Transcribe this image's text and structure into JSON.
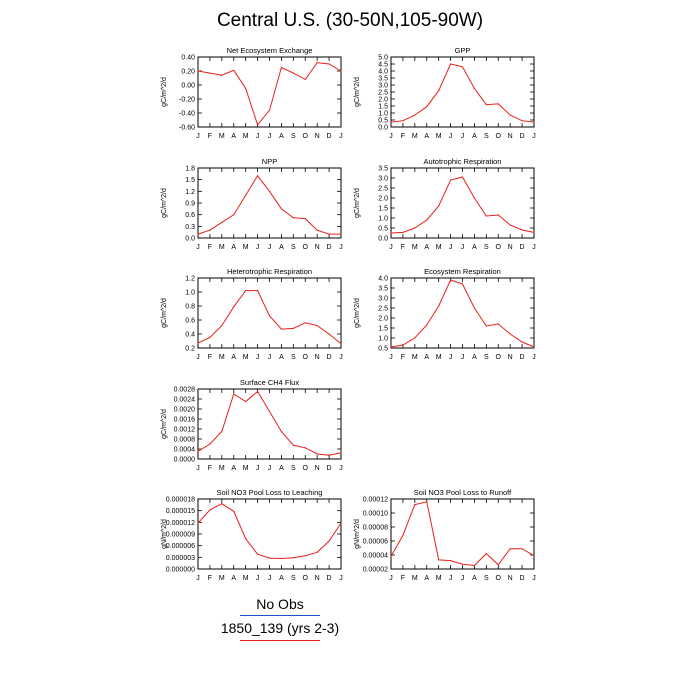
{
  "title": "Central U.S. (30-50N,105-90W)",
  "colors": {
    "model": "#e8201a",
    "obs": "#2050c8"
  },
  "legend": {
    "obs_label": "No Obs",
    "model_label": "1850_139 (yrs 2-3)"
  },
  "chart_data": [
    {
      "type": "line",
      "title": "Net Ecosystem Exchange",
      "ylabel": "gC/m^2/d",
      "ylim": [
        -0.6,
        0.4
      ],
      "yticks": [
        "0.40",
        "0.20",
        "0.00",
        "-0.20",
        "-0.40",
        "-0.60"
      ],
      "ytick_values": [
        0.4,
        0.2,
        0.0,
        -0.2,
        -0.4,
        -0.6
      ],
      "x": [
        "J",
        "F",
        "M",
        "A",
        "M",
        "J",
        "J",
        "A",
        "S",
        "O",
        "N",
        "D",
        "J"
      ],
      "values": [
        0.2,
        0.17,
        0.14,
        0.21,
        -0.05,
        -0.57,
        -0.36,
        0.25,
        0.17,
        0.08,
        0.32,
        0.3,
        0.2
      ]
    },
    {
      "type": "line",
      "title": "GPP",
      "ylabel": "gC/m^2/d",
      "ylim": [
        0,
        5
      ],
      "yticks": [
        "5.0",
        "4.5",
        "4.0",
        "3.5",
        "3.0",
        "2.5",
        "2.0",
        "1.5",
        "1.0",
        "0.5",
        "0.0"
      ],
      "ytick_values": [
        5.0,
        4.5,
        4.0,
        3.5,
        3.0,
        2.5,
        2.0,
        1.5,
        1.0,
        0.5,
        0.0
      ],
      "x": [
        "J",
        "F",
        "M",
        "A",
        "M",
        "J",
        "J",
        "A",
        "S",
        "O",
        "N",
        "D",
        "J"
      ],
      "values": [
        0.35,
        0.45,
        0.85,
        1.45,
        2.6,
        4.5,
        4.3,
        2.75,
        1.6,
        1.65,
        0.85,
        0.45,
        0.35
      ]
    },
    {
      "type": "line",
      "title": "NPP",
      "ylabel": "gC/m^2/d",
      "ylim": [
        0,
        1.8
      ],
      "yticks": [
        "1.8",
        "1.5",
        "1.2",
        "0.9",
        "0.6",
        "0.3",
        "0.0"
      ],
      "ytick_values": [
        1.8,
        1.5,
        1.2,
        0.9,
        0.6,
        0.3,
        0.0
      ],
      "x": [
        "J",
        "F",
        "M",
        "A",
        "M",
        "J",
        "J",
        "A",
        "S",
        "O",
        "N",
        "D",
        "J"
      ],
      "values": [
        0.1,
        0.2,
        0.4,
        0.6,
        1.1,
        1.6,
        1.2,
        0.75,
        0.52,
        0.5,
        0.2,
        0.1,
        0.1
      ]
    },
    {
      "type": "line",
      "title": "Autotrophic Respiration",
      "ylabel": "gC/m^2/d",
      "ylim": [
        0,
        3.5
      ],
      "yticks": [
        "3.5",
        "3.0",
        "2.5",
        "2.0",
        "1.5",
        "1.0",
        "0.5",
        "0.0"
      ],
      "ytick_values": [
        3.5,
        3.0,
        2.5,
        2.0,
        1.5,
        1.0,
        0.5,
        0.0
      ],
      "x": [
        "J",
        "F",
        "M",
        "A",
        "M",
        "J",
        "J",
        "A",
        "S",
        "O",
        "N",
        "D",
        "J"
      ],
      "values": [
        0.25,
        0.28,
        0.5,
        0.9,
        1.6,
        2.9,
        3.05,
        2.0,
        1.1,
        1.15,
        0.65,
        0.4,
        0.28
      ]
    },
    {
      "type": "line",
      "title": "Heterotrophic Respiration",
      "ylabel": "gC/m^2/d",
      "ylim": [
        0.2,
        1.2
      ],
      "yticks": [
        "1.2",
        "1.0",
        "0.8",
        "0.6",
        "0.4",
        "0.2"
      ],
      "ytick_values": [
        1.2,
        1.0,
        0.8,
        0.6,
        0.4,
        0.2
      ],
      "x": [
        "J",
        "F",
        "M",
        "A",
        "M",
        "J",
        "J",
        "A",
        "S",
        "O",
        "N",
        "D",
        "J"
      ],
      "values": [
        0.27,
        0.35,
        0.52,
        0.79,
        1.02,
        1.02,
        0.66,
        0.47,
        0.48,
        0.56,
        0.52,
        0.4,
        0.26
      ]
    },
    {
      "type": "line",
      "title": "Ecosystem Respiration",
      "ylabel": "gC/m^2/d",
      "ylim": [
        0.5,
        4.0
      ],
      "yticks": [
        "4.0",
        "3.5",
        "3.0",
        "2.5",
        "2.0",
        "1.5",
        "1.0",
        "0.5"
      ],
      "ytick_values": [
        4.0,
        3.5,
        3.0,
        2.5,
        2.0,
        1.5,
        1.0,
        0.5
      ],
      "x": [
        "J",
        "F",
        "M",
        "A",
        "M",
        "J",
        "J",
        "A",
        "S",
        "O",
        "N",
        "D",
        "J"
      ],
      "values": [
        0.55,
        0.65,
        1.0,
        1.65,
        2.6,
        3.9,
        3.7,
        2.5,
        1.6,
        1.7,
        1.2,
        0.8,
        0.55
      ]
    },
    {
      "type": "line",
      "title": "Surface CH4 Flux",
      "ylabel": "gC/m^2/d",
      "ylim": [
        0,
        0.0028
      ],
      "yticks": [
        "0.0028",
        "0.0024",
        "0.0020",
        "0.0016",
        "0.0012",
        "0.0008",
        "0.0004",
        "0.0000"
      ],
      "ytick_values": [
        0.0028,
        0.0024,
        0.002,
        0.0016,
        0.0012,
        0.0008,
        0.0004,
        0.0
      ],
      "x": [
        "J",
        "F",
        "M",
        "A",
        "M",
        "J",
        "J",
        "A",
        "S",
        "O",
        "N",
        "D",
        "J"
      ],
      "values": [
        0.0003,
        0.0006,
        0.0011,
        0.0026,
        0.0023,
        0.0027,
        0.0019,
        0.0011,
        0.00055,
        0.00045,
        0.0002,
        0.00015,
        0.00025
      ]
    },
    {
      "type": "line",
      "title": "Soil NO3 Pool Loss to Leaching",
      "ylabel": "gN/m^2/d",
      "ylim": [
        0,
        1.8e-05
      ],
      "yticks": [
        "0.000018",
        "0.000015",
        "0.000012",
        "0.000009",
        "0.000006",
        "0.000003",
        "0.000000"
      ],
      "ytick_values": [
        1.8e-05,
        1.5e-05,
        1.2e-05,
        9e-06,
        6e-06,
        3e-06,
        0.0
      ],
      "x": [
        "J",
        "F",
        "M",
        "A",
        "M",
        "J",
        "J",
        "A",
        "S",
        "O",
        "N",
        "D",
        "J"
      ],
      "values": [
        1.18e-05,
        1.52e-05,
        1.68e-05,
        1.48e-05,
        7.8e-06,
        3.8e-06,
        2.8e-06,
        2.7e-06,
        2.9e-06,
        3.4e-06,
        4.3e-06,
        7.2e-06,
        1.18e-05
      ]
    },
    {
      "type": "line",
      "title": "Soil NO3 Pool Loss to Runoff",
      "ylabel": "gN/m^2/d",
      "ylim": [
        2e-05,
        0.00012
      ],
      "yticks": [
        "0.00012",
        "0.00010",
        "0.00008",
        "0.00006",
        "0.00004",
        "0.00002"
      ],
      "ytick_values": [
        0.00012,
        0.0001,
        8e-05,
        6e-05,
        4e-05,
        2e-05
      ],
      "x": [
        "J",
        "F",
        "M",
        "A",
        "M",
        "J",
        "J",
        "A",
        "S",
        "O",
        "N",
        "D",
        "J"
      ],
      "values": [
        3.8e-05,
        6.8e-05,
        0.000112,
        0.000116,
        3.3e-05,
        3.2e-05,
        2.7e-05,
        2.5e-05,
        4.2e-05,
        2.6e-05,
        4.9e-05,
        4.9e-05,
        3.9e-05
      ]
    }
  ]
}
